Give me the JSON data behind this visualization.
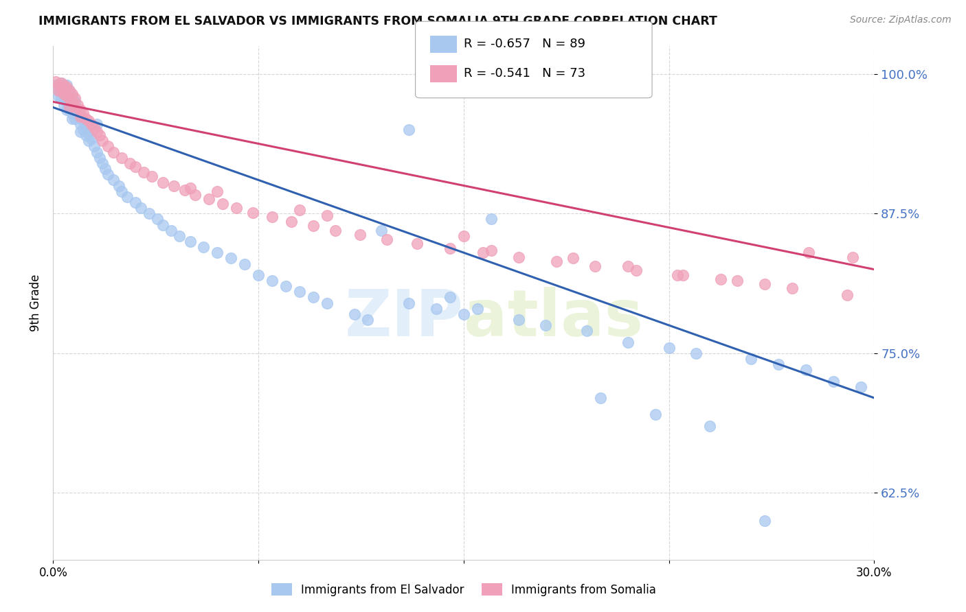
{
  "title": "IMMIGRANTS FROM EL SALVADOR VS IMMIGRANTS FROM SOMALIA 9TH GRADE CORRELATION CHART",
  "source": "Source: ZipAtlas.com",
  "ylabel": "9th Grade",
  "el_salvador_R": -0.657,
  "el_salvador_N": 89,
  "somalia_R": -0.541,
  "somalia_N": 73,
  "el_salvador_color": "#a8c8f0",
  "somalia_color": "#f0a0b8",
  "el_salvador_line_color": "#3060b0",
  "somalia_line_color": "#d04070",
  "watermark_color": "#c8dff8",
  "xlim": [
    0.0,
    0.3
  ],
  "ylim": [
    0.565,
    1.025
  ],
  "yticks": [
    0.625,
    0.75,
    0.875,
    1.0
  ],
  "ytick_labels": [
    "62.5%",
    "75.0%",
    "87.5%",
    "100.0%"
  ],
  "el_salvador_trendline": [
    0.97,
    0.71
  ],
  "somalia_trendline": [
    0.975,
    0.825
  ],
  "el_salvador_x": [
    0.001,
    0.002,
    0.002,
    0.003,
    0.003,
    0.003,
    0.004,
    0.004,
    0.004,
    0.005,
    0.005,
    0.005,
    0.005,
    0.006,
    0.006,
    0.006,
    0.007,
    0.007,
    0.007,
    0.007,
    0.008,
    0.008,
    0.008,
    0.009,
    0.009,
    0.01,
    0.01,
    0.01,
    0.011,
    0.011,
    0.012,
    0.012,
    0.013,
    0.013,
    0.014,
    0.015,
    0.016,
    0.016,
    0.017,
    0.018,
    0.019,
    0.02,
    0.022,
    0.024,
    0.025,
    0.027,
    0.03,
    0.032,
    0.035,
    0.038,
    0.04,
    0.043,
    0.046,
    0.05,
    0.055,
    0.06,
    0.065,
    0.07,
    0.075,
    0.08,
    0.085,
    0.09,
    0.095,
    0.1,
    0.11,
    0.115,
    0.12,
    0.13,
    0.14,
    0.15,
    0.16,
    0.17,
    0.18,
    0.195,
    0.21,
    0.225,
    0.235,
    0.255,
    0.265,
    0.275,
    0.285,
    0.295,
    0.13,
    0.145,
    0.155,
    0.2,
    0.22,
    0.24,
    0.26
  ],
  "el_salvador_y": [
    0.99,
    0.985,
    0.98,
    0.992,
    0.985,
    0.978,
    0.988,
    0.98,
    0.972,
    0.99,
    0.982,
    0.975,
    0.968,
    0.985,
    0.975,
    0.968,
    0.98,
    0.972,
    0.965,
    0.96,
    0.975,
    0.968,
    0.96,
    0.968,
    0.962,
    0.962,
    0.955,
    0.948,
    0.958,
    0.95,
    0.952,
    0.945,
    0.948,
    0.94,
    0.942,
    0.935,
    0.93,
    0.955,
    0.925,
    0.92,
    0.915,
    0.91,
    0.905,
    0.9,
    0.895,
    0.89,
    0.885,
    0.88,
    0.875,
    0.87,
    0.865,
    0.86,
    0.855,
    0.85,
    0.845,
    0.84,
    0.835,
    0.83,
    0.82,
    0.815,
    0.81,
    0.805,
    0.8,
    0.795,
    0.785,
    0.78,
    0.86,
    0.795,
    0.79,
    0.785,
    0.87,
    0.78,
    0.775,
    0.77,
    0.76,
    0.755,
    0.75,
    0.745,
    0.74,
    0.735,
    0.725,
    0.72,
    0.95,
    0.8,
    0.79,
    0.71,
    0.695,
    0.685,
    0.6
  ],
  "somalia_x": [
    0.001,
    0.002,
    0.002,
    0.003,
    0.003,
    0.004,
    0.004,
    0.005,
    0.005,
    0.006,
    0.006,
    0.006,
    0.007,
    0.007,
    0.008,
    0.008,
    0.009,
    0.01,
    0.01,
    0.011,
    0.012,
    0.013,
    0.014,
    0.015,
    0.016,
    0.017,
    0.018,
    0.02,
    0.022,
    0.025,
    0.028,
    0.03,
    0.033,
    0.036,
    0.04,
    0.044,
    0.048,
    0.052,
    0.057,
    0.062,
    0.067,
    0.073,
    0.08,
    0.087,
    0.095,
    0.103,
    0.112,
    0.122,
    0.133,
    0.145,
    0.157,
    0.17,
    0.184,
    0.198,
    0.213,
    0.228,
    0.244,
    0.26,
    0.276,
    0.292,
    0.05,
    0.06,
    0.09,
    0.1,
    0.16,
    0.175,
    0.19,
    0.21,
    0.23,
    0.25,
    0.27,
    0.29,
    0.15
  ],
  "somalia_y": [
    0.993,
    0.99,
    0.985,
    0.992,
    0.985,
    0.99,
    0.982,
    0.988,
    0.98,
    0.985,
    0.978,
    0.97,
    0.982,
    0.975,
    0.978,
    0.97,
    0.972,
    0.968,
    0.962,
    0.965,
    0.96,
    0.958,
    0.955,
    0.952,
    0.948,
    0.945,
    0.94,
    0.935,
    0.93,
    0.925,
    0.92,
    0.917,
    0.912,
    0.908,
    0.903,
    0.9,
    0.896,
    0.892,
    0.888,
    0.884,
    0.88,
    0.876,
    0.872,
    0.868,
    0.864,
    0.86,
    0.856,
    0.852,
    0.848,
    0.844,
    0.84,
    0.836,
    0.832,
    0.828,
    0.824,
    0.82,
    0.816,
    0.812,
    0.84,
    0.836,
    0.898,
    0.895,
    0.878,
    0.873,
    0.842,
    0.998,
    0.835,
    0.828,
    0.82,
    0.815,
    0.808,
    0.802,
    0.855
  ]
}
